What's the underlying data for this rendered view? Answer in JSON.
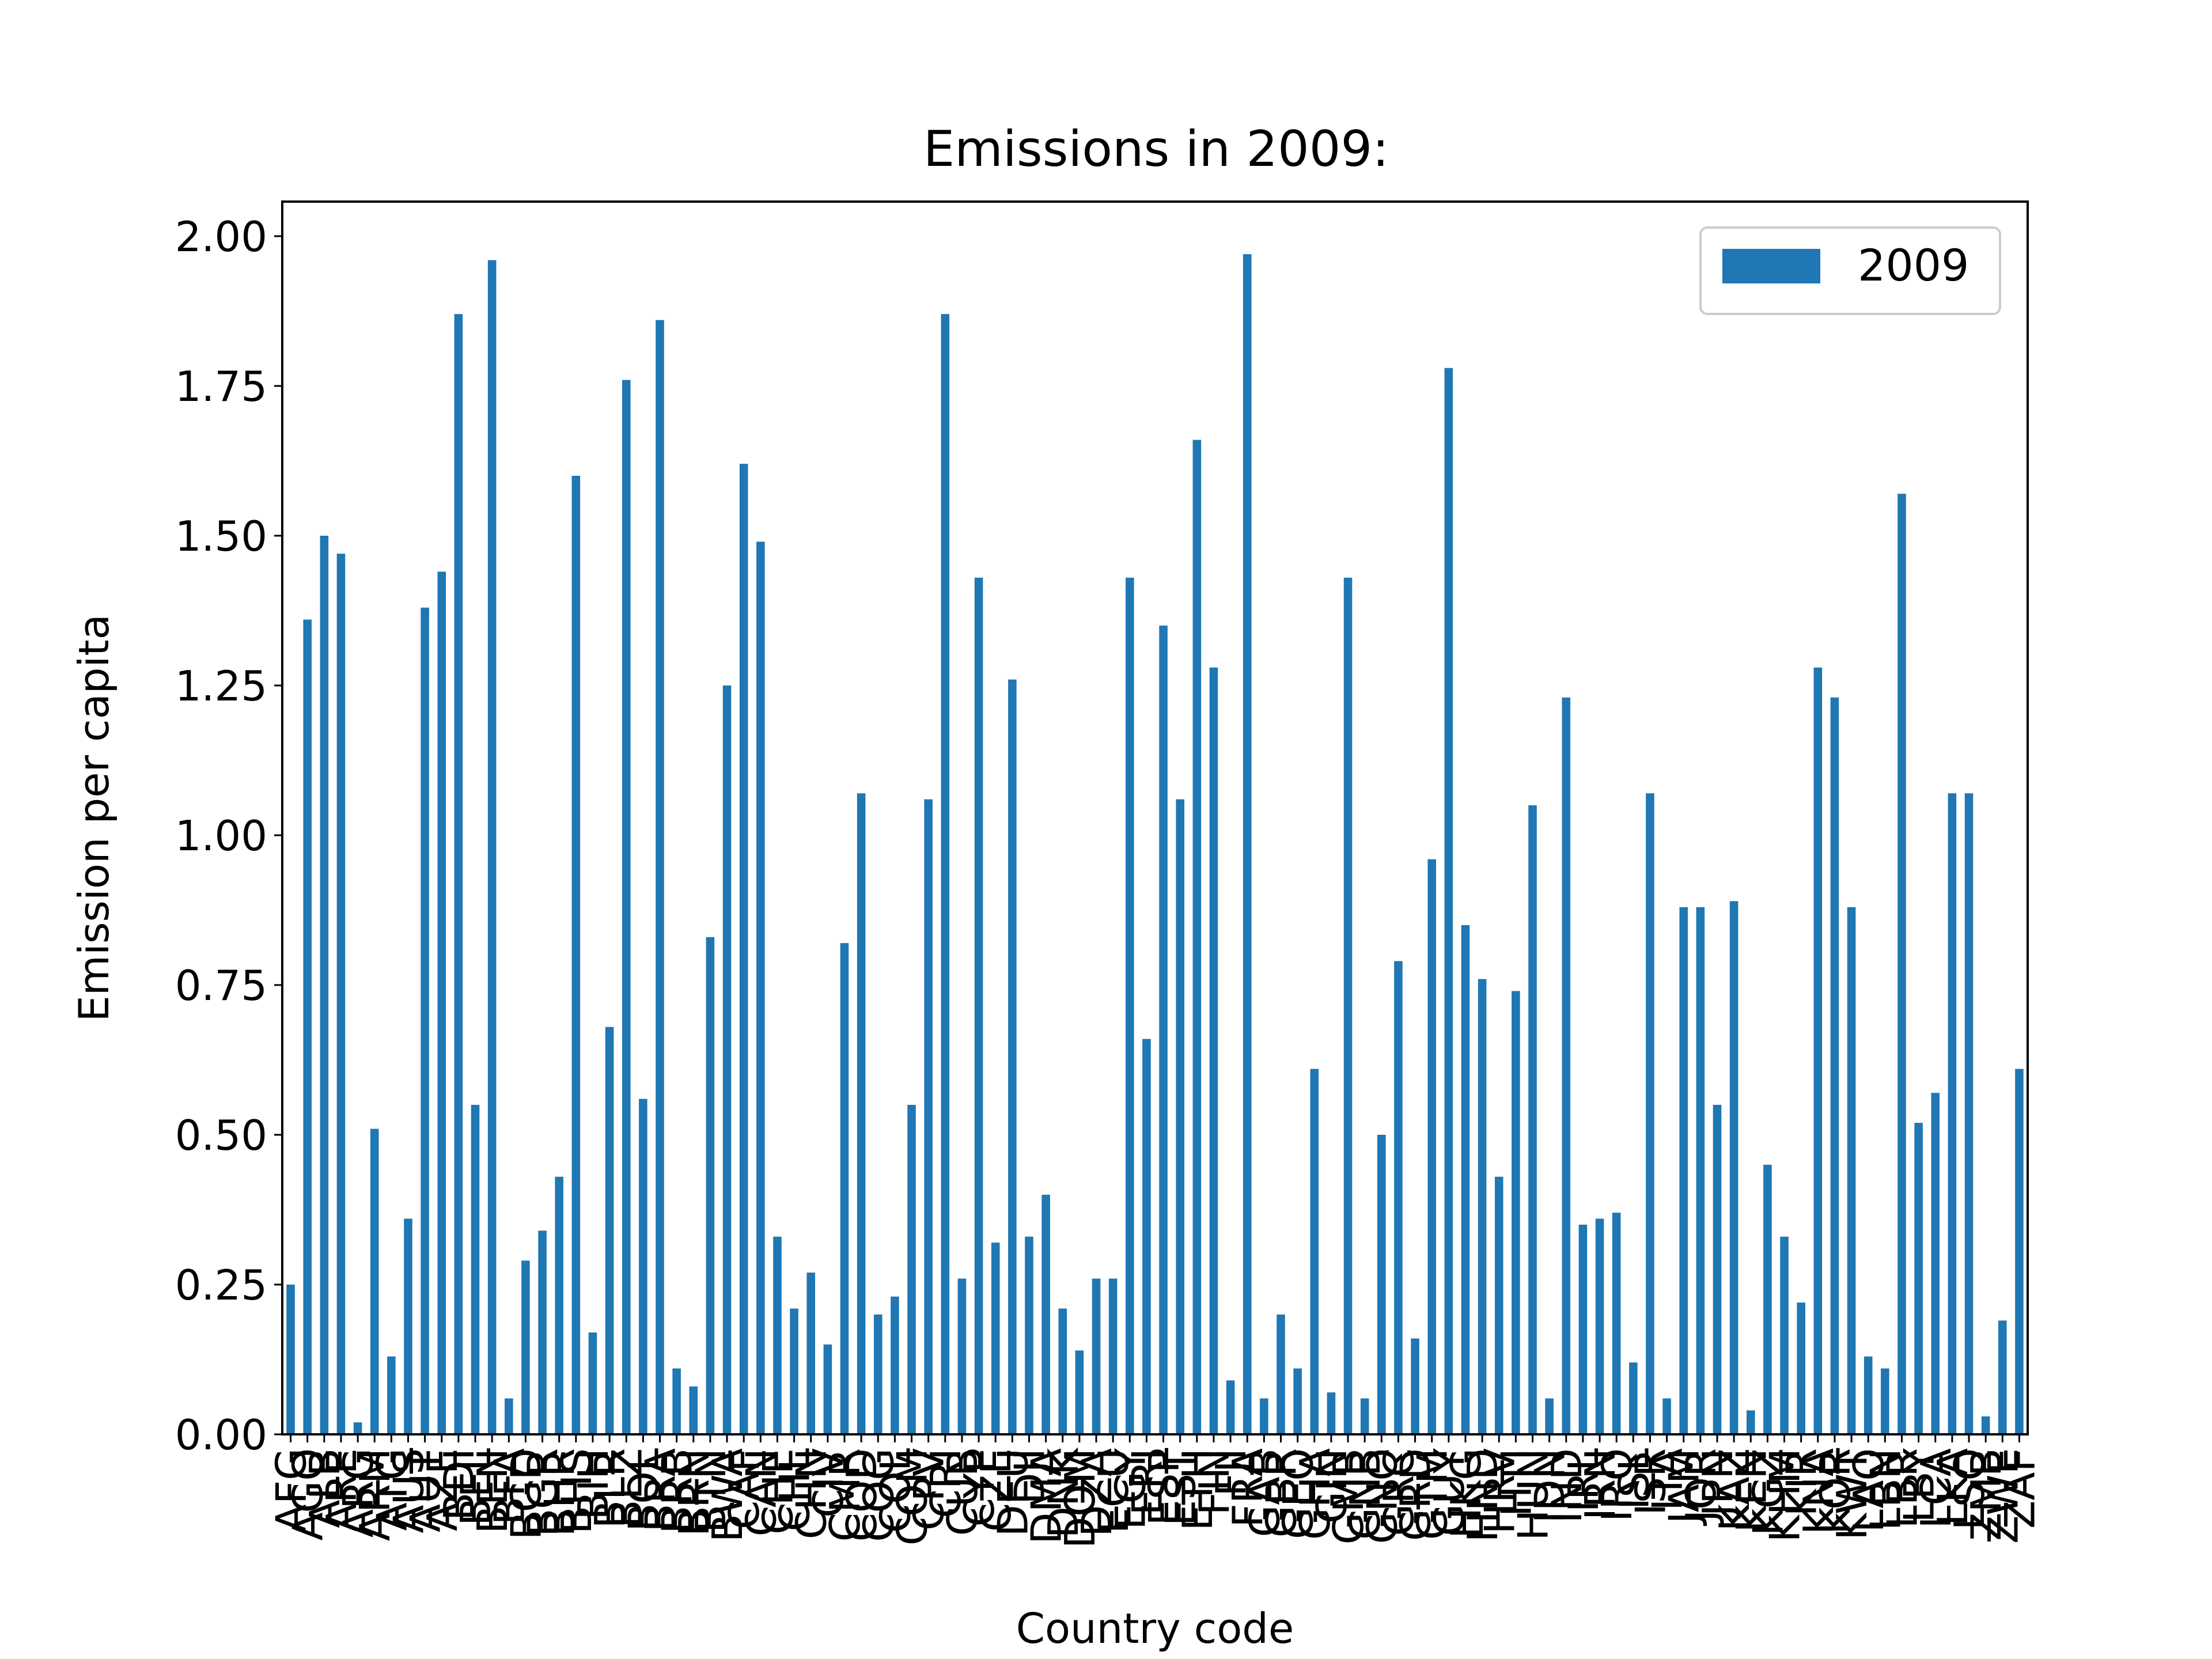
{
  "chart_data": {
    "type": "bar",
    "title": "Emissions in 2009:",
    "xlabel": "Country code",
    "ylabel": "Emission per capita",
    "ylim": [
      0,
      2.06
    ],
    "yticks": [
      "0.00",
      "0.25",
      "0.50",
      "0.75",
      "1.00",
      "1.25",
      "1.50",
      "1.75",
      "2.00"
    ],
    "grid": false,
    "legend_position": "top-right",
    "series": [
      {
        "name": "2009",
        "color": "#1f77b4",
        "values": [
          0.25,
          1.36,
          1.5,
          1.47,
          0.02,
          0.51,
          0.13,
          0.36,
          1.38,
          1.44,
          1.87,
          0.55,
          1.96,
          0.06,
          0.29,
          0.34,
          0.43,
          1.6,
          0.17,
          0.68,
          1.76,
          0.56,
          1.86,
          0.11,
          0.08,
          0.83,
          1.25,
          1.62,
          1.49,
          0.33,
          0.21,
          0.27,
          0.15,
          0.82,
          1.07,
          0.2,
          0.23,
          0.55,
          1.06,
          1.87,
          0.26,
          1.43,
          0.32,
          1.26,
          0.33,
          0.4,
          0.21,
          0.14,
          0.26,
          0.26,
          1.43,
          0.66,
          1.35,
          1.06,
          1.66,
          1.28,
          0.09,
          1.97,
          0.06,
          0.2,
          0.11,
          0.61,
          0.07,
          1.43,
          0.06,
          0.5,
          0.79,
          0.16,
          0.96,
          1.78,
          0.85,
          0.76,
          0.43,
          0.74,
          1.05,
          0.06,
          1.23,
          0.35,
          0.36,
          0.37,
          0.12,
          1.07,
          0.06,
          0.88,
          0.88,
          0.55,
          0.89,
          0.04,
          0.45,
          0.33,
          0.22,
          1.28,
          1.23,
          0.88,
          0.13,
          0.11,
          1.57,
          0.52,
          0.57,
          1.07,
          1.07,
          0.03,
          0.19,
          0.61
        ]
      }
    ],
    "categories": [
      "AFG",
      "AGO",
      "ALB",
      "ARE",
      "ARG",
      "ARM",
      "ATG",
      "AUS",
      "AUT",
      "AZE",
      "BDI",
      "BEL",
      "BEN",
      "BFA",
      "BGD",
      "BGR",
      "BHR",
      "BHS",
      "BIH",
      "BLR",
      "BLZ",
      "BOL",
      "BRA",
      "BRB",
      "BRN",
      "BTN",
      "BWA",
      "CAF",
      "CAN",
      "CHE",
      "CHL",
      "CHN",
      "CIV",
      "CMR",
      "COD",
      "COG",
      "COL",
      "COM",
      "CPV",
      "CRI",
      "CUB",
      "CYP",
      "CZE",
      "DEU",
      "DJI",
      "DMA",
      "DNK",
      "DOM",
      "DZA",
      "ECU",
      "EGY",
      "ERI",
      "ESP",
      "EST",
      "ETH",
      "FIN",
      "FJI",
      "FRA",
      "GAB",
      "GBR",
      "GEO",
      "GHA",
      "GIN",
      "GMB",
      "GNB",
      "GNQ",
      "GRC",
      "GRD",
      "GTM",
      "GUY",
      "HKG",
      "HND",
      "HRV",
      "HTI",
      "HUN",
      "IDN",
      "IND",
      "IRL",
      "IRN",
      "IRQ",
      "ISL",
      "ISR",
      "ITA",
      "JAM",
      "JOR",
      "JPN",
      "KAZ",
      "KEN",
      "KGZ",
      "KHM",
      "KIR",
      "KNA",
      "KOR",
      "KWT",
      "LAO",
      "LBN",
      "LBR",
      "LBY",
      "LCA",
      "LKA",
      "LSO",
      "ZMB",
      "ZWE",
      "ZAF"
    ]
  }
}
